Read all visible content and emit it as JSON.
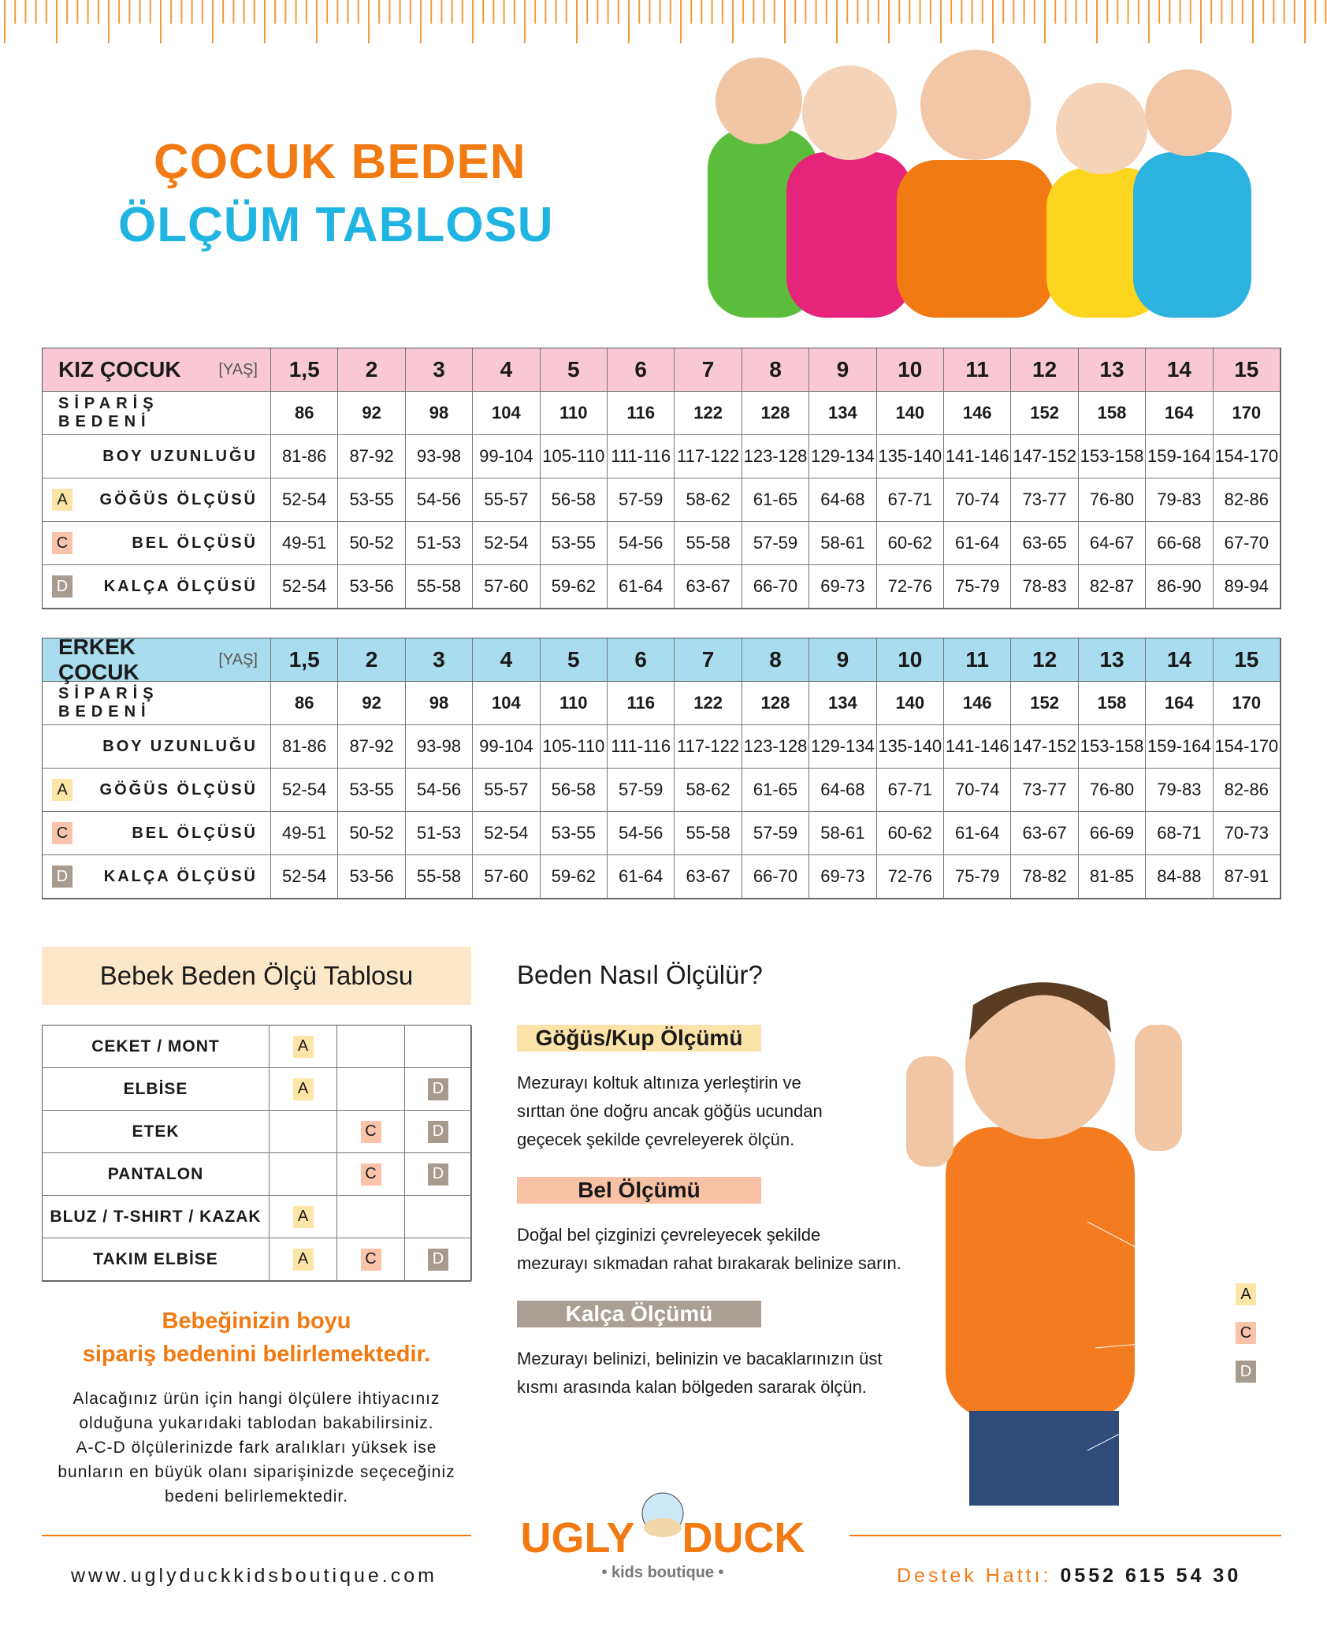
{
  "header": {
    "title_line1": "ÇOCUK BEDEN",
    "title_line2": "ÖLÇÜM TABLOSU"
  },
  "girls_table": {
    "label": "KIZ ÇOCUK",
    "age_label": "[YAŞ]",
    "ages": [
      "1,5",
      "2",
      "3",
      "4",
      "5",
      "6",
      "7",
      "8",
      "9",
      "10",
      "11",
      "12",
      "13",
      "14",
      "15"
    ],
    "rows": [
      {
        "label": "SİPARİŞ BEDENİ",
        "values": [
          "86",
          "92",
          "98",
          "104",
          "110",
          "116",
          "122",
          "128",
          "134",
          "140",
          "146",
          "152",
          "158",
          "164",
          "170"
        ]
      },
      {
        "label": "BOY UZUNLUĞU",
        "values": [
          "81-86",
          "87-92",
          "93-98",
          "99-104",
          "105-110",
          "111-116",
          "117-122",
          "123-128",
          "129-134",
          "135-140",
          "141-146",
          "147-152",
          "153-158",
          "159-164",
          "154-170"
        ]
      },
      {
        "marker": "A",
        "label": "GÖĞÜS ÖLÇÜSÜ",
        "values": [
          "52-54",
          "53-55",
          "54-56",
          "55-57",
          "56-58",
          "57-59",
          "58-62",
          "61-65",
          "64-68",
          "67-71",
          "70-74",
          "73-77",
          "76-80",
          "79-83",
          "82-86"
        ]
      },
      {
        "marker": "C",
        "label": "BEL ÖLÇÜSÜ",
        "values": [
          "49-51",
          "50-52",
          "51-53",
          "52-54",
          "53-55",
          "54-56",
          "55-58",
          "57-59",
          "58-61",
          "60-62",
          "61-64",
          "63-65",
          "64-67",
          "66-68",
          "67-70"
        ]
      },
      {
        "marker": "D",
        "label": "KALÇA ÖLÇÜSÜ",
        "values": [
          "52-54",
          "53-56",
          "55-58",
          "57-60",
          "59-62",
          "61-64",
          "63-67",
          "66-70",
          "69-73",
          "72-76",
          "75-79",
          "78-83",
          "82-87",
          "86-90",
          "89-94"
        ]
      }
    ]
  },
  "boys_table": {
    "label": "ERKEK ÇOCUK",
    "age_label": "[YAŞ]",
    "ages": [
      "1,5",
      "2",
      "3",
      "4",
      "5",
      "6",
      "7",
      "8",
      "9",
      "10",
      "11",
      "12",
      "13",
      "14",
      "15"
    ],
    "rows": [
      {
        "label": "SİPARİŞ BEDENİ",
        "values": [
          "86",
          "92",
          "98",
          "104",
          "110",
          "116",
          "122",
          "128",
          "134",
          "140",
          "146",
          "152",
          "158",
          "164",
          "170"
        ]
      },
      {
        "label": "BOY UZUNLUĞU",
        "values": [
          "81-86",
          "87-92",
          "93-98",
          "99-104",
          "105-110",
          "111-116",
          "117-122",
          "123-128",
          "129-134",
          "135-140",
          "141-146",
          "147-152",
          "153-158",
          "159-164",
          "154-170"
        ]
      },
      {
        "marker": "A",
        "label": "GÖĞÜS ÖLÇÜSÜ",
        "values": [
          "52-54",
          "53-55",
          "54-56",
          "55-57",
          "56-58",
          "57-59",
          "58-62",
          "61-65",
          "64-68",
          "67-71",
          "70-74",
          "73-77",
          "76-80",
          "79-83",
          "82-86"
        ]
      },
      {
        "marker": "C",
        "label": "BEL ÖLÇÜSÜ",
        "values": [
          "49-51",
          "50-52",
          "51-53",
          "52-54",
          "53-55",
          "54-56",
          "55-58",
          "57-59",
          "58-61",
          "60-62",
          "61-64",
          "63-67",
          "66-69",
          "68-71",
          "70-73"
        ]
      },
      {
        "marker": "D",
        "label": "KALÇA ÖLÇÜSÜ",
        "values": [
          "52-54",
          "53-56",
          "55-58",
          "57-60",
          "59-62",
          "61-64",
          "63-67",
          "66-70",
          "69-73",
          "72-76",
          "75-79",
          "78-82",
          "81-85",
          "84-88",
          "87-91"
        ]
      }
    ]
  },
  "baby_table": {
    "title": "Bebek Beden Ölçü Tablosu",
    "rows": [
      {
        "label": "CEKET / MONT",
        "cells": [
          "A",
          null,
          null
        ]
      },
      {
        "label": "ELBİSE",
        "cells": [
          "A",
          null,
          "D"
        ]
      },
      {
        "label": "ETEK",
        "cells": [
          null,
          "C",
          "D"
        ]
      },
      {
        "label": "PANTALON",
        "cells": [
          null,
          "C",
          "D"
        ]
      },
      {
        "label": "BLUZ / T-SHIRT / KAZAK",
        "cells": [
          "A",
          null,
          null
        ]
      },
      {
        "label": "TAKIM ELBİSE",
        "cells": [
          "A",
          "C",
          "D"
        ]
      }
    ]
  },
  "baby_note": {
    "heading": [
      "Bebeğinizin boyu",
      "sipariş bedenini belirlemektedir."
    ],
    "body": [
      "Alacağınız ürün için hangi ölçülere ihtiyacınız",
      "olduğuna yukarıdaki tablodan bakabilirsiniz.",
      "A-C-D ölçülerinizde fark aralıkları yüksek ise",
      "bunların en büyük olanı siparişinizde seçeceğiniz",
      "bedeni belirlemektedir."
    ]
  },
  "howto": {
    "title": "Beden Nasıl Ölçülür?",
    "sections": [
      {
        "title": "Göğüs/Kup Ölçümü",
        "lines": [
          "Mezurayı koltuk altınıza yerleştirin ve",
          "sırttan öne doğru ancak göğüs ucundan",
          "geçecek şekilde çevreleyerek ölçün."
        ]
      },
      {
        "title": "Bel Ölçümü",
        "lines": [
          "Doğal bel çizginizi çevreleyecek şekilde",
          "mezurayı sıkmadan rahat bırakarak belinize sarın."
        ]
      },
      {
        "title": "Kalça Ölçümü",
        "lines": [
          "Mezurayı belinizi, belinizin ve bacaklarınızın üst",
          "kısmı arasında kalan bölgeden sararak ölçün."
        ]
      }
    ]
  },
  "figure_markers": [
    "A",
    "C",
    "D"
  ],
  "logo": {
    "word1": "UGLY",
    "word2": "DUCK",
    "tagline": "kids boutique"
  },
  "footer": {
    "website": "www.uglyduckkidsboutique.com",
    "support_label": "Destek Hattı:",
    "phone": "0552 615 54 30"
  }
}
